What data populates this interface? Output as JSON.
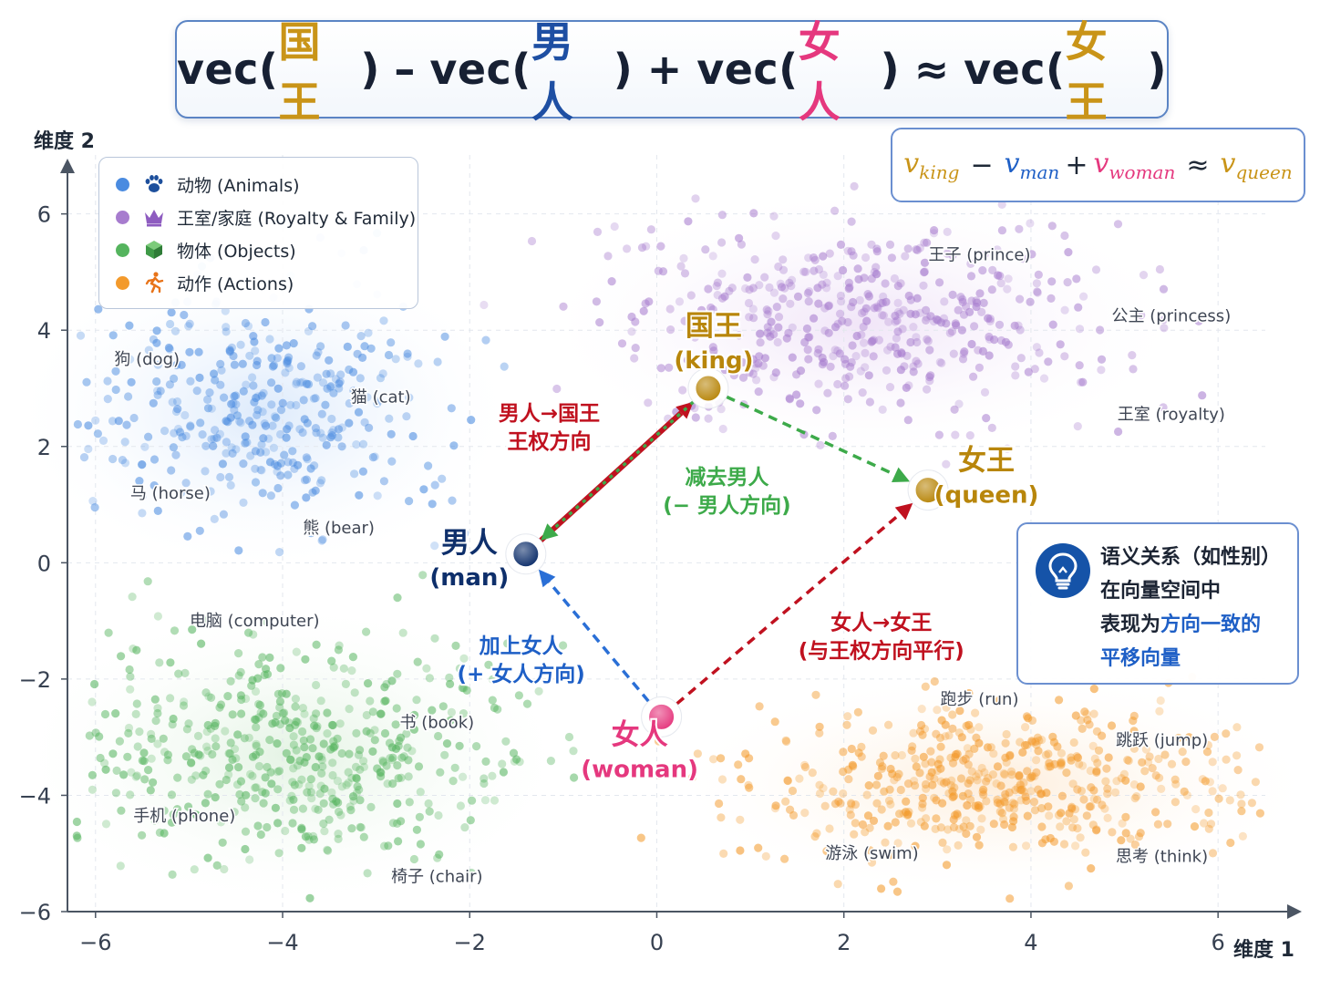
{
  "title": {
    "vec": "vec(",
    "close": ")",
    "term_king": "国王",
    "term_man": "男人",
    "term_woman": "女人",
    "term_queen": "女王",
    "op_minus": "–",
    "op_plus": "+",
    "op_approx": "≈",
    "colors": {
      "king": "#c99418",
      "man": "#1e4fa3",
      "woman": "#e5387e",
      "queen": "#c99418"
    }
  },
  "formula": {
    "v": "v",
    "sub_king": "king",
    "sub_man": "man",
    "sub_woman": "woman",
    "sub_queen": "queen",
    "op_minus": "−",
    "op_plus": "+",
    "op_approx": "≈",
    "colors": {
      "king": "#c99418",
      "man": "#1e5fc6",
      "woman": "#e5387e",
      "queen": "#c99418"
    }
  },
  "legend": [
    {
      "label": "动物 (Animals)",
      "color": "#4a8be0",
      "icon": "paw-icon"
    },
    {
      "label": "王室/家庭 (Royalty & Family)",
      "color": "#a77cce",
      "icon": "crown-icon"
    },
    {
      "label": "物体 (Objects)",
      "color": "#55b45e",
      "icon": "cube-icon"
    },
    {
      "label": "动作 (Actions)",
      "color": "#f39a2c",
      "icon": "running-person-icon"
    }
  ],
  "note": {
    "icon": "lightbulb-icon",
    "line1": "语义关系（如性别）",
    "line2": "在向量空间中",
    "line3_plain": "表现为",
    "line3_hl": "方向一致的",
    "line4_hl": "平移向量"
  },
  "chart_data": {
    "type": "scatter",
    "xlabel": "维度 1",
    "ylabel": "维度 2",
    "xlim": [
      -6.3,
      6.7
    ],
    "ylim": [
      -6,
      6.7
    ],
    "xticks": [
      -6,
      -4,
      -2,
      0,
      2,
      4,
      6
    ],
    "yticks": [
      6,
      4,
      2,
      0,
      -2,
      -4,
      -6
    ],
    "xtick_labels": [
      "−6",
      "−4",
      "−2",
      "0",
      "2",
      "4",
      "6"
    ],
    "ytick_labels": [
      "6",
      "4",
      "2",
      "0",
      "−2",
      "−4",
      "−6"
    ],
    "grid": true,
    "legend_position": "top-left",
    "clusters": [
      {
        "name": "动物 (Animals)",
        "color": "#4a8be0",
        "center": [
          -4.2,
          2.6
        ],
        "spread": [
          1.05,
          1.0
        ],
        "count": 380
      },
      {
        "name": "王室/家庭 (Royalty & Family)",
        "color": "#a77cce",
        "center": [
          2.2,
          4.1
        ],
        "spread": [
          1.35,
          0.85
        ],
        "count": 480
      },
      {
        "name": "物体 (Objects)",
        "color": "#55b45e",
        "center": [
          -3.9,
          -3.3
        ],
        "spread": [
          1.15,
          0.95
        ],
        "count": 520
      },
      {
        "name": "动作 (Actions)",
        "color": "#f39a2c",
        "center": [
          3.6,
          -3.8
        ],
        "spread": [
          1.35,
          0.7
        ],
        "count": 520
      }
    ],
    "word_labels": [
      {
        "text": "狗 (dog)",
        "x": -5.45,
        "y": 3.5
      },
      {
        "text": "猫 (cat)",
        "x": -2.95,
        "y": 2.85
      },
      {
        "text": "马 (horse)",
        "x": -5.2,
        "y": 1.2
      },
      {
        "text": "熊 (bear)",
        "x": -3.4,
        "y": 0.6
      },
      {
        "text": "王子 (prince)",
        "x": 3.45,
        "y": 5.3
      },
      {
        "text": "公主 (princess)",
        "x": 5.5,
        "y": 4.25
      },
      {
        "text": "王室 (royalty)",
        "x": 5.5,
        "y": 2.55
      },
      {
        "text": "电脑 (computer)",
        "x": -4.3,
        "y": -1.0
      },
      {
        "text": "书 (book)",
        "x": -2.35,
        "y": -2.75
      },
      {
        "text": "手机 (phone)",
        "x": -5.05,
        "y": -4.35
      },
      {
        "text": "椅子 (chair)",
        "x": -2.35,
        "y": -5.4
      },
      {
        "text": "跑步 (run)",
        "x": 3.45,
        "y": -2.35
      },
      {
        "text": "跳跃 (jump)",
        "x": 5.4,
        "y": -3.05
      },
      {
        "text": "游泳 (swim)",
        "x": 2.3,
        "y": -5.0
      },
      {
        "text": "思考 (think)",
        "x": 5.4,
        "y": -5.05
      }
    ],
    "points": [
      {
        "id": "king",
        "name": "国王",
        "sub": "(king)",
        "x": 0.55,
        "y": 3.0,
        "color": "#b8860b",
        "label_color": "#b8860b"
      },
      {
        "id": "man",
        "name": "男人",
        "sub": "(man)",
        "x": -1.4,
        "y": 0.15,
        "color": "#0e2f6b",
        "label_color": "#0e2f6b"
      },
      {
        "id": "woman",
        "name": "女人",
        "sub": "(woman)",
        "x": 0.05,
        "y": -2.65,
        "color": "#e5387e",
        "label_color": "#e5387e"
      },
      {
        "id": "queen",
        "name": "女王",
        "sub": "(queen)",
        "x": 2.9,
        "y": 1.25,
        "color": "#b8860b",
        "label_color": "#b8860b"
      }
    ],
    "arrows": [
      {
        "from": "man",
        "to": "king",
        "style": "solid",
        "color": "#c0111f"
      },
      {
        "from": "king",
        "to": "queen",
        "style": "dashed",
        "color": "#3daa4a"
      },
      {
        "from": "king",
        "to": "man",
        "style": "dotted",
        "color": "#3daa4a"
      },
      {
        "from": "woman",
        "to": "man",
        "style": "dashed",
        "color": "#2a6fd6"
      },
      {
        "from": "woman",
        "to": "queen",
        "style": "dashed",
        "color": "#c0111f"
      }
    ],
    "annotations": [
      {
        "lines": [
          "男人→国王",
          "王权方向"
        ],
        "color": "#c0111f",
        "x": -1.15,
        "y": 2.45
      },
      {
        "lines": [
          "减去男人",
          "(− 男人方向)"
        ],
        "color": "#3daa4a",
        "x": 0.75,
        "y": 1.35
      },
      {
        "lines": [
          "加上女人",
          "(+ 女人方向)"
        ],
        "color": "#1e5fc6",
        "x": -1.45,
        "y": -1.55
      },
      {
        "lines": [
          "女人→女王",
          "(与王权方向平行)"
        ],
        "color": "#c0111f",
        "x": 2.4,
        "y": -1.15
      }
    ]
  }
}
